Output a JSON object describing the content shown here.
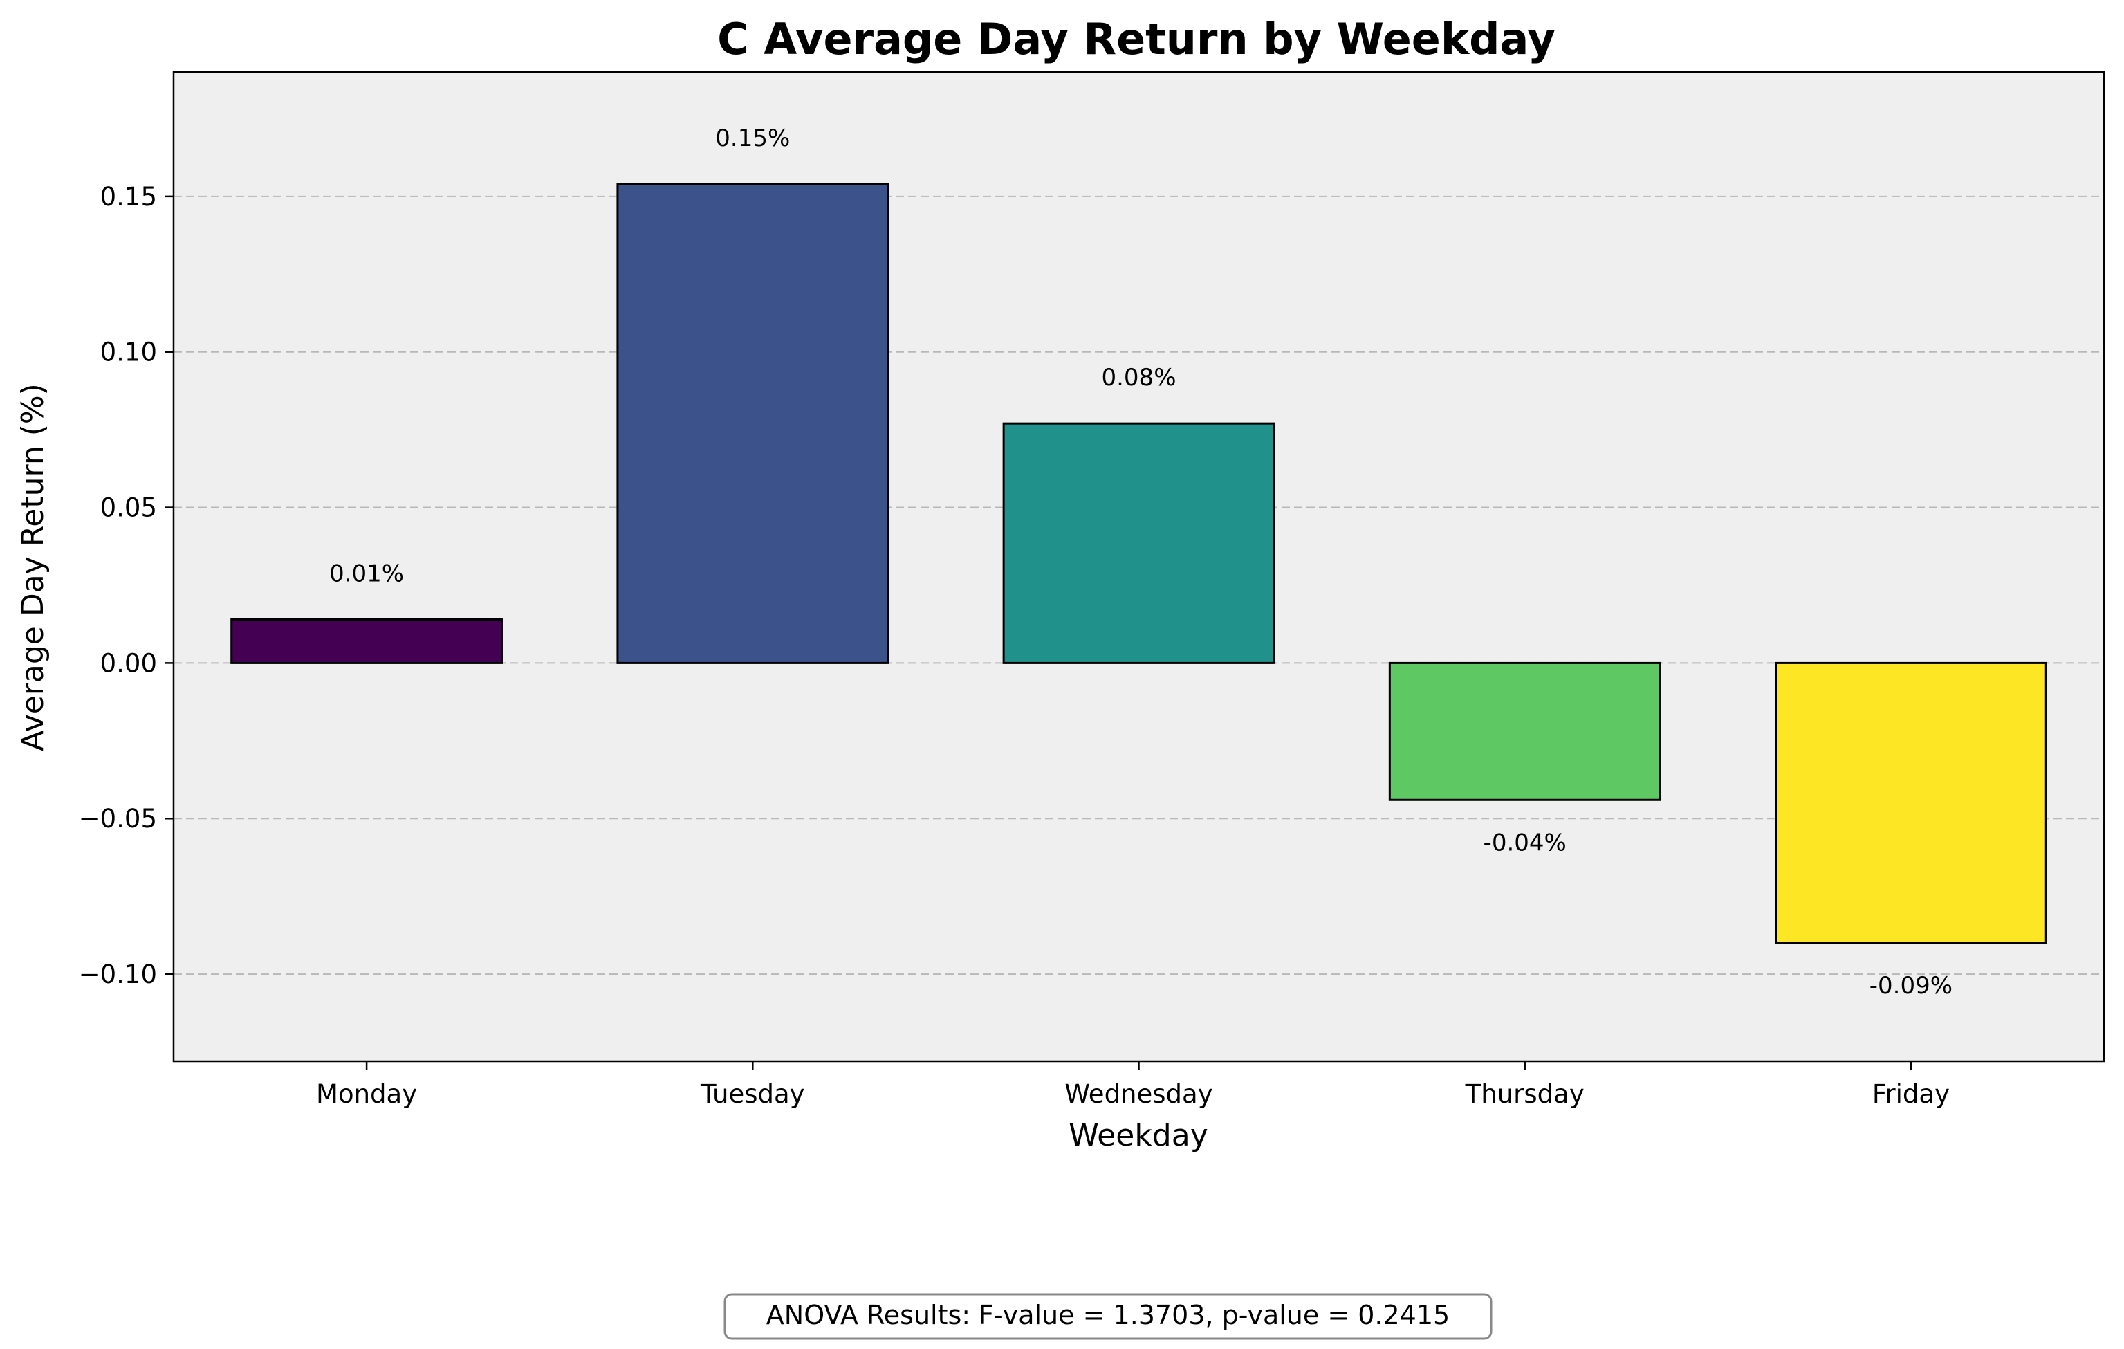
{
  "chart_data": {
    "type": "bar",
    "title": "C Average Day Return by Weekday",
    "xlabel": "Weekday",
    "ylabel": "Average Day Return (%)",
    "categories": [
      "Monday",
      "Tuesday",
      "Wednesday",
      "Thursday",
      "Friday"
    ],
    "values": [
      0.014,
      0.154,
      0.077,
      -0.044,
      -0.09
    ],
    "data_labels": [
      "0.01%",
      "0.15%",
      "0.08%",
      "-0.04%",
      "-0.09%"
    ],
    "colors": [
      "#440154",
      "#3b528b",
      "#21918c",
      "#5ec962",
      "#fde725"
    ],
    "ylim": [
      -0.128,
      0.19
    ],
    "yticks": [
      -0.1,
      -0.05,
      0.0,
      0.05,
      0.1,
      0.15
    ],
    "ytick_labels": [
      "−0.10",
      "−0.05",
      "0.00",
      "0.05",
      "0.10",
      "0.15"
    ],
    "grid": "horizontal dashed",
    "plot_background": "#efefef"
  },
  "annotation": {
    "text": "ANOVA Results: F-value = 1.3703, p-value = 0.2415"
  }
}
